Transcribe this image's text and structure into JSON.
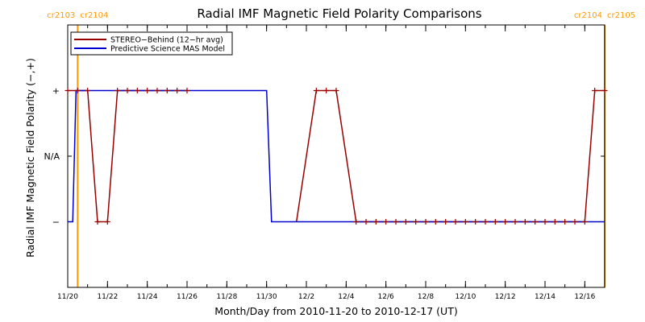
{
  "chart_data": {
    "type": "line",
    "title": "Radial IMF Magnetic Field Polarity Comparisons",
    "xlabel": "Month/Day from 2010-11-20 to 2010-12-17 (UT)",
    "ylabel": "Radial IMF Magnetic Field Polarity (−,+)",
    "x_range": [
      "2010-11-20",
      "2010-12-17"
    ],
    "x_ticks": [
      {
        "date": "2010-11-20",
        "label": "11/20"
      },
      {
        "date": "2010-11-22",
        "label": "11/22"
      },
      {
        "date": "2010-11-24",
        "label": "11/24"
      },
      {
        "date": "2010-11-26",
        "label": "11/26"
      },
      {
        "date": "2010-11-28",
        "label": "11/28"
      },
      {
        "date": "2010-11-30",
        "label": "11/30"
      },
      {
        "date": "2010-12-02",
        "label": "12/2"
      },
      {
        "date": "2010-12-04",
        "label": "12/4"
      },
      {
        "date": "2010-12-06",
        "label": "12/6"
      },
      {
        "date": "2010-12-08",
        "label": "12/8"
      },
      {
        "date": "2010-12-10",
        "label": "12/10"
      },
      {
        "date": "2010-12-12",
        "label": "12/12"
      },
      {
        "date": "2010-12-14",
        "label": "12/14"
      },
      {
        "date": "2010-12-16",
        "label": "12/16"
      }
    ],
    "y_categories": [
      "−",
      "N/A",
      "+"
    ],
    "y_values": {
      "−": -1,
      "N/A": 0,
      "+": 1
    },
    "ylim": [
      -2,
      2
    ],
    "grid": false,
    "legend_position": "top-left",
    "carrington_rotations": [
      {
        "date": "2010-11-20 12:00",
        "labels": [
          "cr2103",
          "cr2104"
        ],
        "color": "#ff9900"
      },
      {
        "date": "2010-12-17 00:00",
        "labels": [
          "cr2104",
          "cr2105"
        ],
        "color": "#ff9900"
      }
    ],
    "series": [
      {
        "name": "STEREO−Behind (12−hr avg)",
        "color": "#990000",
        "markers": true,
        "points": [
          [
            "2010-11-20 00:00",
            1
          ],
          [
            "2010-11-20 12:00",
            1
          ],
          [
            "2010-11-21 00:00",
            1
          ],
          [
            "2010-11-21 12:00",
            -1
          ],
          [
            "2010-11-22 00:00",
            -1
          ],
          [
            "2010-11-22 12:00",
            1
          ],
          [
            "2010-11-23 00:00",
            1
          ],
          [
            "2010-11-23 12:00",
            1
          ],
          [
            "2010-11-24 00:00",
            1
          ],
          [
            "2010-11-24 12:00",
            1
          ],
          [
            "2010-11-25 00:00",
            1
          ],
          [
            "2010-11-25 12:00",
            1
          ],
          [
            "2010-11-26 00:00",
            1
          ],
          [
            "2010-12-02 12:00",
            1
          ],
          [
            "2010-12-03 00:00",
            1
          ],
          [
            "2010-12-03 12:00",
            1
          ],
          [
            "2010-12-04 12:00",
            -1
          ],
          [
            "2010-12-05 00:00",
            -1
          ],
          [
            "2010-12-05 12:00",
            -1
          ],
          [
            "2010-12-06 00:00",
            -1
          ],
          [
            "2010-12-06 12:00",
            -1
          ],
          [
            "2010-12-07 00:00",
            -1
          ],
          [
            "2010-12-07 12:00",
            -1
          ],
          [
            "2010-12-08 00:00",
            -1
          ],
          [
            "2010-12-08 12:00",
            -1
          ],
          [
            "2010-12-09 00:00",
            -1
          ],
          [
            "2010-12-09 12:00",
            -1
          ],
          [
            "2010-12-10 00:00",
            -1
          ],
          [
            "2010-12-10 12:00",
            -1
          ],
          [
            "2010-12-11 00:00",
            -1
          ],
          [
            "2010-12-11 12:00",
            -1
          ],
          [
            "2010-12-12 00:00",
            -1
          ],
          [
            "2010-12-12 12:00",
            -1
          ],
          [
            "2010-12-13 00:00",
            -1
          ],
          [
            "2010-12-13 12:00",
            -1
          ],
          [
            "2010-12-14 00:00",
            -1
          ],
          [
            "2010-12-14 12:00",
            -1
          ],
          [
            "2010-12-15 00:00",
            -1
          ],
          [
            "2010-12-15 12:00",
            -1
          ],
          [
            "2010-12-16 00:00",
            -1
          ],
          [
            "2010-12-16 12:00",
            1
          ],
          [
            "2010-12-17 00:00",
            1
          ]
        ],
        "line_segments": [
          [
            [
              "2010-11-20 00:00",
              1
            ],
            [
              "2010-11-21 00:00",
              1
            ],
            [
              "2010-11-21 12:00",
              -1
            ],
            [
              "2010-11-22 00:00",
              -1
            ],
            [
              "2010-11-22 12:00",
              1
            ],
            [
              "2010-11-26 00:00",
              1
            ]
          ],
          [
            [
              "2010-12-01 12:00",
              -1
            ],
            [
              "2010-12-02 12:00",
              1
            ],
            [
              "2010-12-03 12:00",
              1
            ],
            [
              "2010-12-04 12:00",
              -1
            ],
            [
              "2010-12-16 00:00",
              -1
            ],
            [
              "2010-12-16 12:00",
              1
            ],
            [
              "2010-12-17 00:00",
              1
            ]
          ]
        ]
      },
      {
        "name": "Predictive Science MAS Model",
        "color": "#0000cc",
        "markers": false,
        "points": [
          [
            "2010-11-20 00:00",
            -1
          ],
          [
            "2010-11-20 06:00",
            -1
          ],
          [
            "2010-11-20 10:00",
            1
          ],
          [
            "2010-11-30 00:00",
            1
          ],
          [
            "2010-11-30 06:00",
            -1
          ],
          [
            "2010-12-17 00:00",
            -1
          ]
        ]
      }
    ]
  }
}
